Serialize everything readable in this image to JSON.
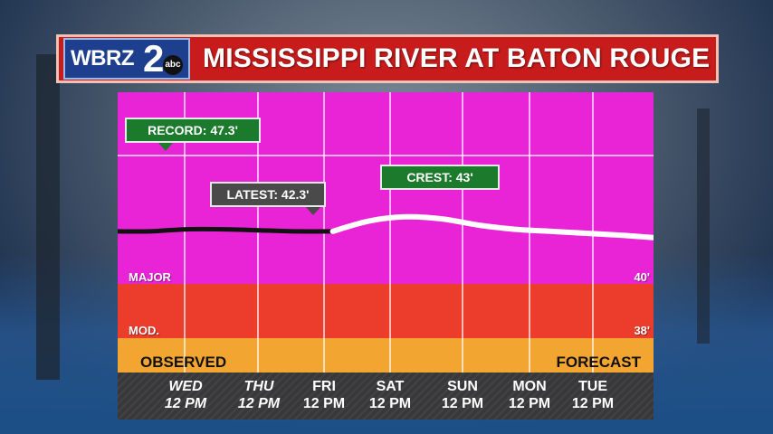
{
  "header": {
    "logo_text": "WBRZ",
    "logo_number": "2",
    "logo_network": "abc",
    "title": "MISSISSIPPI RIVER AT BATON ROUGE"
  },
  "colors": {
    "major_band": "#e924d6",
    "moderate_band": "#ec3d2c",
    "action_band": "#f2a531",
    "observed_line": "#111111",
    "forecast_line": "#ffffff",
    "tag_green": "#1c7a2c",
    "tag_gray": "#4a4a4a",
    "banner_red": "#c81c1c"
  },
  "chart_data": {
    "type": "line",
    "title": "MISSISSIPPI RIVER AT BATON ROUGE",
    "unit": "ft",
    "categories": [
      "WED 12 PM",
      "THU 12 PM",
      "FRI 12 PM",
      "SAT 12 PM",
      "SUN 12 PM",
      "MON 12 PM",
      "TUE 12 PM"
    ],
    "x_range": [
      -0.95,
      6.4
    ],
    "y_range": [
      35.5,
      49
    ],
    "series": [
      {
        "name": "OBSERVED",
        "x": [
          -0.95,
          -0.5,
          0,
          0.5,
          1,
          1.5,
          2
        ],
        "values": [
          42.3,
          42.3,
          42.4,
          42.4,
          42.35,
          42.3,
          42.3
        ]
      },
      {
        "name": "FORECAST",
        "x": [
          2,
          2.5,
          3,
          3.5,
          4,
          4.5,
          5,
          5.5,
          6,
          6.4
        ],
        "values": [
          42.3,
          42.8,
          43.0,
          42.9,
          42.6,
          42.4,
          42.3,
          42.2,
          42.1,
          42.0
        ]
      }
    ],
    "stages": [
      {
        "name": "MAJOR",
        "value": 40,
        "label": "40'"
      },
      {
        "name": "MOD.",
        "value": 38,
        "label": "38'"
      }
    ],
    "annotations": {
      "record": "RECORD: 47.3'",
      "latest": "LATEST: 42.3'",
      "crest": "CREST: 43'"
    },
    "period_labels": {
      "observed": "OBSERVED",
      "forecast": "FORECAST"
    },
    "ticks": [
      {
        "day": "WED",
        "time": "12 PM"
      },
      {
        "day": "THU",
        "time": "12 PM"
      },
      {
        "day": "FRI",
        "time": "12 PM"
      },
      {
        "day": "SAT",
        "time": "12 PM"
      },
      {
        "day": "SUN",
        "time": "12 PM"
      },
      {
        "day": "MON",
        "time": "12 PM"
      },
      {
        "day": "TUE",
        "time": "12 PM"
      }
    ]
  }
}
